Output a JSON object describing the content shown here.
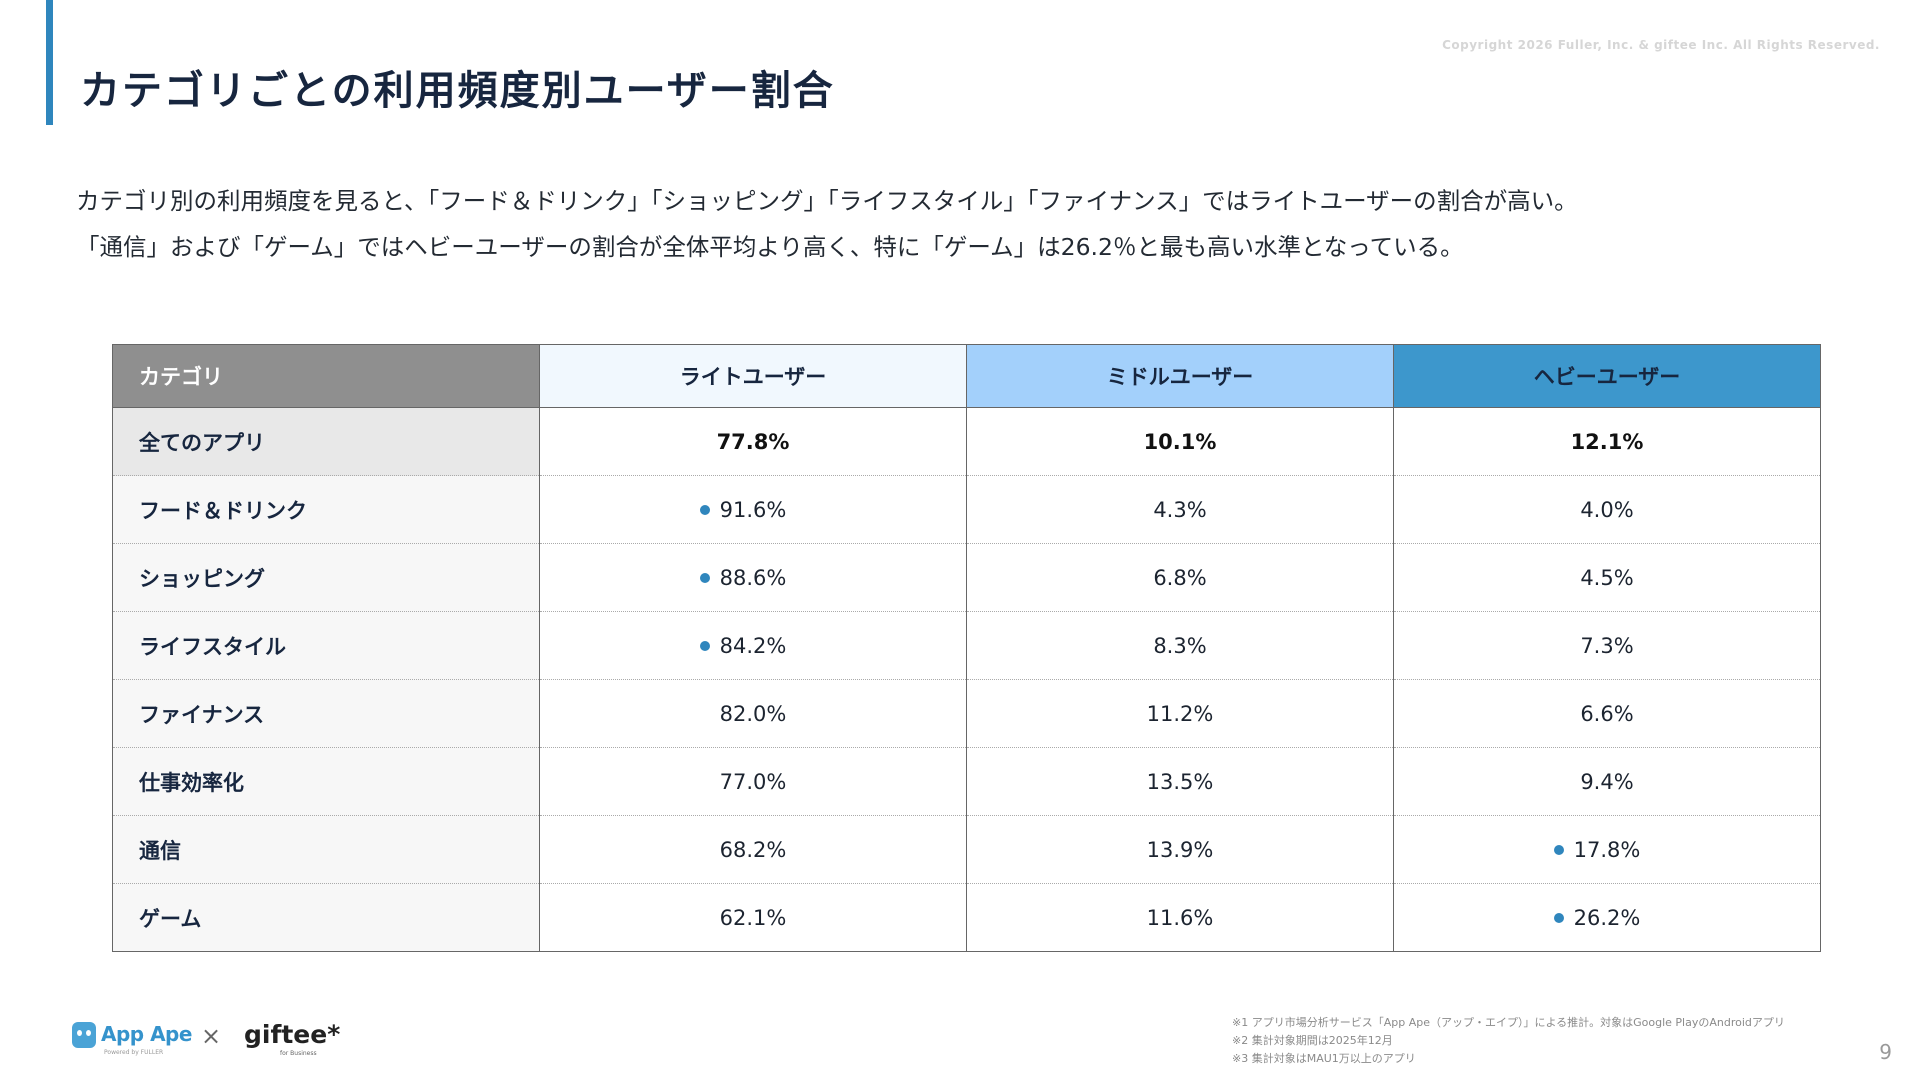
{
  "slide": {
    "title": "カテゴリごとの利用頻度別ユーザー割合",
    "copyright": "Copyright 2026 Fuller, Inc. & giftee Inc. All Rights Reserved.",
    "description": [
      "カテゴリ別の利用頻度を見ると、「フード＆ドリンク」「ショッピング」「ライフスタイル」「ファイナンス」ではライトユーザーの割合が高い。",
      "「通信」および「ゲーム」ではヘビーユーザーの割合が全体平均より高く、特に「ゲーム」は26.2％と最も高い水準となっている。"
    ],
    "page_number": "9"
  },
  "colors": {
    "accent": "#2f86bd",
    "header_category": "#8f8f8f",
    "header_light": "#f1f8fe",
    "header_middle": "#a3d0fb",
    "header_heavy": "#3d97cc",
    "highlight_dot": "#2f86bd"
  },
  "table": {
    "headers": [
      "カテゴリ",
      "ライトユーザー",
      "ミドルユーザー",
      "ヘビーユーザー"
    ],
    "rows": [
      {
        "category": "全てのアプリ",
        "light": "77.8%",
        "middle": "10.1%",
        "heavy": "12.1%",
        "highlight": ""
      },
      {
        "category": "フード＆ドリンク",
        "light": "91.6%",
        "middle": "4.3%",
        "heavy": "4.0%",
        "highlight": "light"
      },
      {
        "category": "ショッピング",
        "light": "88.6%",
        "middle": "6.8%",
        "heavy": "4.5%",
        "highlight": "light"
      },
      {
        "category": "ライフスタイル",
        "light": "84.2%",
        "middle": "8.3%",
        "heavy": "7.3%",
        "highlight": "light"
      },
      {
        "category": "ファイナンス",
        "light": "82.0%",
        "middle": "11.2%",
        "heavy": "6.6%",
        "highlight": ""
      },
      {
        "category": "仕事効率化",
        "light": "77.0%",
        "middle": "13.5%",
        "heavy": "9.4%",
        "highlight": ""
      },
      {
        "category": "通信",
        "light": "68.2%",
        "middle": "13.9%",
        "heavy": "17.8%",
        "highlight": "heavy"
      },
      {
        "category": "ゲーム",
        "light": "62.1%",
        "middle": "11.6%",
        "heavy": "26.2%",
        "highlight": "heavy"
      }
    ]
  },
  "footer": {
    "logos": {
      "appape": "App Ape",
      "powered_by": "Powered by  FULLER",
      "times": "×",
      "giftee": "giftee*",
      "giftee_sub": "for Business",
      "appape_icon": "app-ape-logo-icon"
    },
    "notes": [
      "※1 アプリ市場分析サービス「App Ape（アップ・エイプ）」による推計。対象はGoogle PlayのAndroidアプリ",
      "※2 集計対象期間は2025年12月",
      "※3 集計対象はMAU1万以上のアプリ"
    ]
  }
}
